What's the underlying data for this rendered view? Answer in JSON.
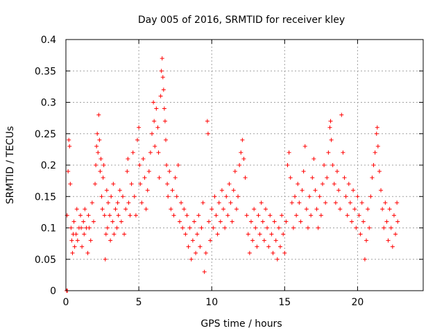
{
  "chart_data": {
    "type": "scatter",
    "title": "Day 005 of 2016, SRMTID for receiver kley",
    "xlabel": "GPS time / hours",
    "ylabel": "SRMTID / TECUs",
    "xlim": [
      0,
      24.5
    ],
    "ylim": [
      0,
      0.4
    ],
    "x_ticks": [
      0,
      5,
      10,
      15,
      20
    ],
    "x_tick_labels": [
      "0",
      "5",
      "10",
      "15",
      "20"
    ],
    "y_ticks": [
      0,
      0.05,
      0.1,
      0.15,
      0.2,
      0.25,
      0.3,
      0.35,
      0.4
    ],
    "y_tick_labels": [
      "0",
      "0.05",
      "0.1",
      "0.15",
      "0.2",
      "0.25",
      "0.3",
      "0.35",
      "0.4"
    ],
    "grid": true,
    "marker": "+",
    "color": "#ff0000",
    "series": [
      {
        "name": "SRMTID",
        "points": [
          [
            0.05,
            0.0
          ],
          [
            0.1,
            0.0
          ],
          [
            0.08,
            0.12
          ],
          [
            0.15,
            0.19
          ],
          [
            0.2,
            0.24
          ],
          [
            0.25,
            0.23
          ],
          [
            0.3,
            0.17
          ],
          [
            0.35,
            0.1
          ],
          [
            0.4,
            0.08
          ],
          [
            0.45,
            0.06
          ],
          [
            0.5,
            0.09
          ],
          [
            0.55,
            0.11
          ],
          [
            0.6,
            0.07
          ],
          [
            0.7,
            0.09
          ],
          [
            0.75,
            0.13
          ],
          [
            0.8,
            0.08
          ],
          [
            0.9,
            0.1
          ],
          [
            1.0,
            0.12
          ],
          [
            1.05,
            0.1
          ],
          [
            1.1,
            0.07
          ],
          [
            1.2,
            0.11
          ],
          [
            1.25,
            0.09
          ],
          [
            1.3,
            0.13
          ],
          [
            1.4,
            0.1
          ],
          [
            1.5,
            0.06
          ],
          [
            1.55,
            0.12
          ],
          [
            1.6,
            0.1
          ],
          [
            1.7,
            0.08
          ],
          [
            1.8,
            0.14
          ],
          [
            1.9,
            0.11
          ],
          [
            2.0,
            0.17
          ],
          [
            2.05,
            0.2
          ],
          [
            2.1,
            0.23
          ],
          [
            2.15,
            0.25
          ],
          [
            2.2,
            0.22
          ],
          [
            2.25,
            0.28
          ],
          [
            2.3,
            0.24
          ],
          [
            2.35,
            0.19
          ],
          [
            2.4,
            0.21
          ],
          [
            2.45,
            0.15
          ],
          [
            2.5,
            0.13
          ],
          [
            2.55,
            0.18
          ],
          [
            2.6,
            0.2
          ],
          [
            2.65,
            0.12
          ],
          [
            2.7,
            0.05
          ],
          [
            2.75,
            0.09
          ],
          [
            2.8,
            0.16
          ],
          [
            2.85,
            0.1
          ],
          [
            2.9,
            0.14
          ],
          [
            3.0,
            0.12
          ],
          [
            3.05,
            0.08
          ],
          [
            3.1,
            0.15
          ],
          [
            3.2,
            0.11
          ],
          [
            3.25,
            0.17
          ],
          [
            3.3,
            0.09
          ],
          [
            3.4,
            0.13
          ],
          [
            3.5,
            0.1
          ],
          [
            3.55,
            0.14
          ],
          [
            3.6,
            0.12
          ],
          [
            3.7,
            0.16
          ],
          [
            3.8,
            0.11
          ],
          [
            3.9,
            0.15
          ],
          [
            4.0,
            0.09
          ],
          [
            4.1,
            0.13
          ],
          [
            4.2,
            0.19
          ],
          [
            4.25,
            0.21
          ],
          [
            4.3,
            0.14
          ],
          [
            4.4,
            0.12
          ],
          [
            4.5,
            0.17
          ],
          [
            4.6,
            0.22
          ],
          [
            4.7,
            0.15
          ],
          [
            4.8,
            0.12
          ],
          [
            4.9,
            0.24
          ],
          [
            5.0,
            0.26
          ],
          [
            5.05,
            0.2
          ],
          [
            5.1,
            0.17
          ],
          [
            5.2,
            0.14
          ],
          [
            5.3,
            0.21
          ],
          [
            5.4,
            0.18
          ],
          [
            5.5,
            0.13
          ],
          [
            5.6,
            0.16
          ],
          [
            5.7,
            0.19
          ],
          [
            5.8,
            0.22
          ],
          [
            5.9,
            0.25
          ],
          [
            6.0,
            0.3
          ],
          [
            6.05,
            0.27
          ],
          [
            6.1,
            0.23
          ],
          [
            6.2,
            0.29
          ],
          [
            6.3,
            0.26
          ],
          [
            6.35,
            0.22
          ],
          [
            6.4,
            0.18
          ],
          [
            6.5,
            0.31
          ],
          [
            6.55,
            0.35
          ],
          [
            6.6,
            0.37
          ],
          [
            6.65,
            0.34
          ],
          [
            6.7,
            0.32
          ],
          [
            6.75,
            0.29
          ],
          [
            6.8,
            0.27
          ],
          [
            6.85,
            0.24
          ],
          [
            6.9,
            0.2
          ],
          [
            6.95,
            0.17
          ],
          [
            7.0,
            0.15
          ],
          [
            7.1,
            0.19
          ],
          [
            7.2,
            0.13
          ],
          [
            7.3,
            0.16
          ],
          [
            7.4,
            0.12
          ],
          [
            7.5,
            0.18
          ],
          [
            7.6,
            0.15
          ],
          [
            7.7,
            0.2
          ],
          [
            7.8,
            0.11
          ],
          [
            7.9,
            0.14
          ],
          [
            8.0,
            0.1
          ],
          [
            8.1,
            0.13
          ],
          [
            8.2,
            0.09
          ],
          [
            8.3,
            0.12
          ],
          [
            8.4,
            0.07
          ],
          [
            8.5,
            0.1
          ],
          [
            8.6,
            0.05
          ],
          [
            8.7,
            0.08
          ],
          [
            8.8,
            0.11
          ],
          [
            8.9,
            0.06
          ],
          [
            9.0,
            0.09
          ],
          [
            9.1,
            0.12
          ],
          [
            9.2,
            0.07
          ],
          [
            9.3,
            0.1
          ],
          [
            9.4,
            0.14
          ],
          [
            9.5,
            0.03
          ],
          [
            9.6,
            0.06
          ],
          [
            9.7,
            0.27
          ],
          [
            9.75,
            0.25
          ],
          [
            9.8,
            0.11
          ],
          [
            9.9,
            0.08
          ],
          [
            10.0,
            0.13
          ],
          [
            10.1,
            0.1
          ],
          [
            10.2,
            0.15
          ],
          [
            10.3,
            0.12
          ],
          [
            10.4,
            0.09
          ],
          [
            10.5,
            0.14
          ],
          [
            10.6,
            0.11
          ],
          [
            10.7,
            0.16
          ],
          [
            10.8,
            0.13
          ],
          [
            10.9,
            0.1
          ],
          [
            11.0,
            0.15
          ],
          [
            11.1,
            0.12
          ],
          [
            11.2,
            0.17
          ],
          [
            11.3,
            0.14
          ],
          [
            11.4,
            0.11
          ],
          [
            11.5,
            0.16
          ],
          [
            11.6,
            0.19
          ],
          [
            11.7,
            0.13
          ],
          [
            11.8,
            0.15
          ],
          [
            11.9,
            0.2
          ],
          [
            12.0,
            0.22
          ],
          [
            12.1,
            0.24
          ],
          [
            12.2,
            0.21
          ],
          [
            12.3,
            0.18
          ],
          [
            12.4,
            0.12
          ],
          [
            12.5,
            0.09
          ],
          [
            12.6,
            0.06
          ],
          [
            12.7,
            0.11
          ],
          [
            12.8,
            0.08
          ],
          [
            12.9,
            0.13
          ],
          [
            13.0,
            0.1
          ],
          [
            13.1,
            0.07
          ],
          [
            13.2,
            0.12
          ],
          [
            13.3,
            0.09
          ],
          [
            13.4,
            0.14
          ],
          [
            13.5,
            0.11
          ],
          [
            13.6,
            0.08
          ],
          [
            13.7,
            0.13
          ],
          [
            13.8,
            0.1
          ],
          [
            13.9,
            0.07
          ],
          [
            14.0,
            0.12
          ],
          [
            14.1,
            0.09
          ],
          [
            14.2,
            0.06
          ],
          [
            14.3,
            0.11
          ],
          [
            14.4,
            0.08
          ],
          [
            14.5,
            0.05
          ],
          [
            14.6,
            0.1
          ],
          [
            14.7,
            0.07
          ],
          [
            14.8,
            0.12
          ],
          [
            14.9,
            0.09
          ],
          [
            15.0,
            0.06
          ],
          [
            15.1,
            0.11
          ],
          [
            15.2,
            0.2
          ],
          [
            15.3,
            0.22
          ],
          [
            15.4,
            0.18
          ],
          [
            15.5,
            0.14
          ],
          [
            15.6,
            0.1
          ],
          [
            15.7,
            0.15
          ],
          [
            15.8,
            0.12
          ],
          [
            15.9,
            0.17
          ],
          [
            16.0,
            0.14
          ],
          [
            16.1,
            0.11
          ],
          [
            16.2,
            0.16
          ],
          [
            16.3,
            0.19
          ],
          [
            16.4,
            0.23
          ],
          [
            16.5,
            0.13
          ],
          [
            16.6,
            0.1
          ],
          [
            16.7,
            0.15
          ],
          [
            16.8,
            0.12
          ],
          [
            16.9,
            0.18
          ],
          [
            17.0,
            0.21
          ],
          [
            17.1,
            0.16
          ],
          [
            17.2,
            0.13
          ],
          [
            17.3,
            0.1
          ],
          [
            17.4,
            0.15
          ],
          [
            17.5,
            0.12
          ],
          [
            17.6,
            0.17
          ],
          [
            17.7,
            0.2
          ],
          [
            17.8,
            0.14
          ],
          [
            17.9,
            0.18
          ],
          [
            18.0,
            0.22
          ],
          [
            18.1,
            0.26
          ],
          [
            18.15,
            0.27
          ],
          [
            18.2,
            0.24
          ],
          [
            18.3,
            0.2
          ],
          [
            18.4,
            0.17
          ],
          [
            18.5,
            0.14
          ],
          [
            18.6,
            0.19
          ],
          [
            18.7,
            0.16
          ],
          [
            18.8,
            0.13
          ],
          [
            18.9,
            0.28
          ],
          [
            19.0,
            0.22
          ],
          [
            19.1,
            0.18
          ],
          [
            19.2,
            0.15
          ],
          [
            19.3,
            0.12
          ],
          [
            19.4,
            0.17
          ],
          [
            19.5,
            0.14
          ],
          [
            19.6,
            0.11
          ],
          [
            19.7,
            0.16
          ],
          [
            19.8,
            0.13
          ],
          [
            19.9,
            0.1
          ],
          [
            20.0,
            0.15
          ],
          [
            20.1,
            0.12
          ],
          [
            20.2,
            0.09
          ],
          [
            20.3,
            0.14
          ],
          [
            20.4,
            0.11
          ],
          [
            20.5,
            0.05
          ],
          [
            20.6,
            0.08
          ],
          [
            20.7,
            0.13
          ],
          [
            20.8,
            0.1
          ],
          [
            20.9,
            0.15
          ],
          [
            21.0,
            0.18
          ],
          [
            21.1,
            0.2
          ],
          [
            21.2,
            0.22
          ],
          [
            21.3,
            0.25
          ],
          [
            21.35,
            0.26
          ],
          [
            21.4,
            0.23
          ],
          [
            21.5,
            0.19
          ],
          [
            21.6,
            0.16
          ],
          [
            21.7,
            0.13
          ],
          [
            21.8,
            0.1
          ],
          [
            21.9,
            0.14
          ],
          [
            22.0,
            0.11
          ],
          [
            22.1,
            0.08
          ],
          [
            22.2,
            0.13
          ],
          [
            22.3,
            0.1
          ],
          [
            22.4,
            0.07
          ],
          [
            22.5,
            0.12
          ],
          [
            22.6,
            0.09
          ],
          [
            22.7,
            0.14
          ],
          [
            22.75,
            0.11
          ]
        ]
      }
    ]
  }
}
